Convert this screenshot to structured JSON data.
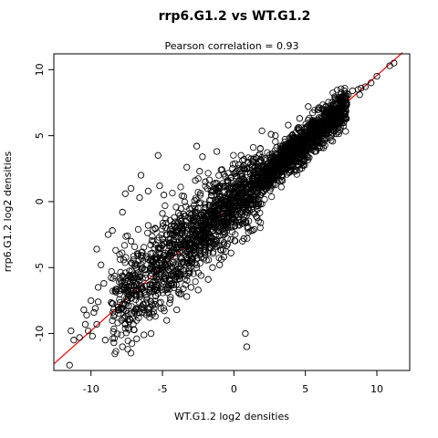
{
  "chart_data": {
    "type": "scatter",
    "title": "rrp6.G1.2 vs WT.G1.2",
    "subtitle": "Pearson correlation =  0.93",
    "xlabel": "WT.G1.2 log2 densities",
    "ylabel": "rrp6.G1.2 log2 densities",
    "xlim": [
      -12.6,
      12.3
    ],
    "ylim": [
      -12.8,
      11.2
    ],
    "x_ticks": [
      -10,
      -5,
      0,
      5,
      10
    ],
    "y_ticks": [
      -10,
      -5,
      0,
      5,
      10
    ],
    "x_tick_labels": [
      "-10",
      "-5",
      "0",
      "5",
      "10"
    ],
    "y_tick_labels": [
      "-10",
      "-5",
      "0",
      "5",
      "10"
    ],
    "grid": false,
    "marker": "open-circle",
    "point_color": "#000000",
    "fit_line": {
      "color": "#ff0000",
      "points": [
        [
          -12.6,
          -12.3
        ],
        [
          11.8,
          11.3
        ]
      ]
    },
    "points": [
      [
        11.2,
        10.5
      ],
      [
        10.9,
        10.3
      ],
      [
        10.0,
        9.5
      ],
      [
        9.6,
        9.0
      ],
      [
        9.2,
        8.7
      ],
      [
        8.9,
        8.6
      ],
      [
        8.7,
        8.5
      ],
      [
        8.8,
        8.1
      ],
      [
        8.3,
        8.4
      ],
      [
        8.0,
        8.1
      ],
      [
        7.8,
        7.5
      ],
      [
        7.3,
        7.8
      ],
      [
        6.8,
        7.0
      ],
      [
        6.5,
        6.6
      ],
      [
        -11.5,
        -12.4
      ],
      [
        -11.4,
        -9.8
      ],
      [
        -11.2,
        -10.5
      ],
      [
        -10.8,
        -10.3
      ],
      [
        -10.2,
        -9.8
      ],
      [
        -9.9,
        -10.2
      ],
      [
        -9.6,
        -9.3
      ],
      [
        -10.5,
        -8.2
      ],
      [
        -10.0,
        -7.5
      ],
      [
        -9.8,
        -8.4
      ],
      [
        -9.5,
        -6.5
      ],
      [
        -9.1,
        -6.2
      ],
      [
        -9.7,
        -8.1
      ],
      [
        -10.3,
        -8.6
      ],
      [
        -9.3,
        -4.8
      ],
      [
        -9.6,
        -3.6
      ],
      [
        -8.8,
        -2.5
      ],
      [
        -8.5,
        -2.2
      ],
      [
        -9.5,
        -7.6
      ],
      [
        -10.4,
        -9.3
      ],
      [
        -9.0,
        -10.5
      ],
      [
        -8.4,
        -10.7
      ],
      [
        -7.8,
        -11.0
      ],
      [
        -7.6,
        -9.3
      ],
      [
        -7.0,
        -9.7
      ],
      [
        -6.8,
        -10.4
      ],
      [
        -6.3,
        -10.1
      ],
      [
        -5.5,
        -8.7
      ],
      [
        -5.8,
        -10.0
      ],
      [
        -6.3,
        -8.2
      ],
      [
        -4.7,
        -9.0
      ],
      [
        -4.5,
        -7.7
      ],
      [
        -4.0,
        -8.2
      ],
      [
        -3.8,
        -7.0
      ],
      [
        -3.3,
        -7.2
      ],
      [
        -3.0,
        -6.5
      ],
      [
        -2.5,
        -6.7
      ],
      [
        -2.3,
        -5.6
      ],
      [
        -1.8,
        -5.9
      ],
      [
        -1.5,
        -5.0
      ],
      [
        -1.0,
        -4.8
      ],
      [
        -0.7,
        -4.2
      ],
      [
        -0.2,
        -3.9
      ],
      [
        0.6,
        -3.0
      ],
      [
        0.8,
        -10.0
      ],
      [
        0.9,
        -11.0
      ],
      [
        0.7,
        -2.8
      ],
      [
        1.3,
        -2.2
      ],
      [
        -5.3,
        3.5
      ],
      [
        -5.2,
        1.2
      ],
      [
        -4.9,
        0.5
      ],
      [
        -3.3,
        2.6
      ],
      [
        -2.7,
        1.6
      ],
      [
        -2.4,
        2.3
      ],
      [
        -2.0,
        1.5
      ],
      [
        -1.3,
        1.4
      ],
      [
        -1.2,
        3.8
      ],
      [
        -0.9,
        2.4
      ],
      [
        -0.6,
        1.9
      ],
      [
        -0.1,
        2.5
      ],
      [
        0.5,
        3.5
      ],
      [
        0.7,
        3.2
      ],
      [
        1.0,
        3.0
      ],
      [
        0.6,
        2.6
      ],
      [
        -2.6,
        4.2
      ],
      [
        -2.2,
        3.4
      ],
      [
        -1.0,
        1.0
      ],
      [
        2.6,
        5.1
      ],
      [
        2.9,
        5.0
      ],
      [
        3.8,
        5.8
      ],
      [
        4.2,
        4.8
      ],
      [
        4.6,
        6.3
      ],
      [
        5.2,
        7.2
      ],
      [
        -6.5,
        2.0
      ],
      [
        -7.2,
        1.0
      ],
      [
        -6.0,
        0.8
      ],
      [
        -7.8,
        -0.8
      ],
      [
        -7.6,
        0.6
      ],
      [
        -6.6,
        0.3
      ],
      [
        -3.5,
        0.4
      ],
      [
        -2.8,
        -0.3
      ],
      [
        -1.5,
        0.8
      ],
      [
        -6.4,
        -6.6
      ],
      [
        -6.1,
        -7.4
      ],
      [
        -4.2,
        -6.3
      ],
      [
        -5.5,
        -7.8
      ],
      [
        -8.1,
        -8.2
      ],
      [
        -8.0,
        -4.0
      ],
      [
        -7.2,
        -3.0
      ],
      [
        -6.0,
        -1.8
      ],
      [
        -5.0,
        -0.9
      ],
      [
        -4.0,
        -2.2
      ],
      [
        -3.0,
        -1.0
      ],
      [
        -2.0,
        -0.5
      ],
      [
        -1.0,
        -0.2
      ],
      [
        0.2,
        0.4
      ],
      [
        1.2,
        1.2
      ],
      [
        2.4,
        2.3
      ],
      [
        3.4,
        3.0
      ],
      [
        4.4,
        4.1
      ],
      [
        5.4,
        5.0
      ],
      [
        6.2,
        6.0
      ]
    ]
  }
}
